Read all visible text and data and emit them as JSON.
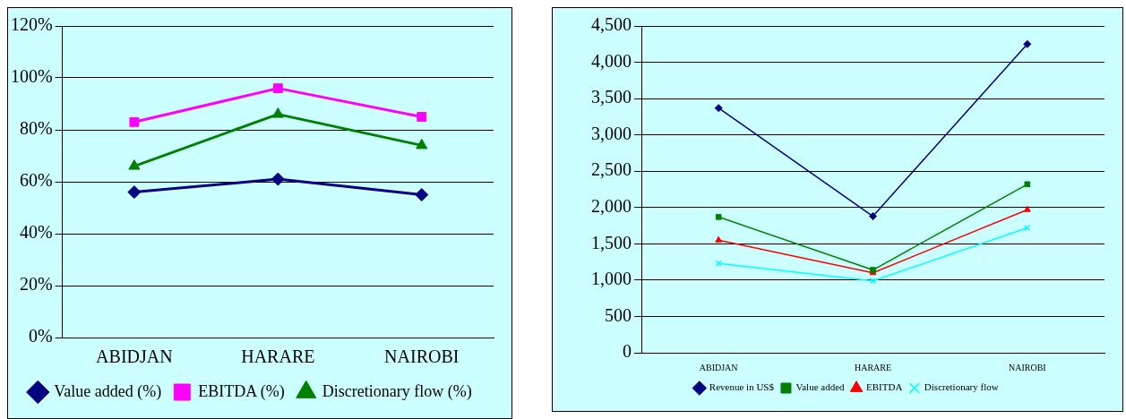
{
  "chart_data": [
    {
      "type": "line",
      "categories": [
        "ABIDJAN",
        "HARARE",
        "NAIROBI"
      ],
      "ylim": [
        0,
        120
      ],
      "yticks": [
        {
          "value": 0,
          "label": "0%"
        },
        {
          "value": 20,
          "label": "20%"
        },
        {
          "value": 40,
          "label": "40%"
        },
        {
          "value": 60,
          "label": "60%"
        },
        {
          "value": 80,
          "label": "80%"
        },
        {
          "value": 100,
          "label": "100%"
        },
        {
          "value": 120,
          "label": "120%"
        }
      ],
      "grid": "y",
      "legend": "bottom",
      "series": [
        {
          "name": "Value added (%)",
          "color": "#000080",
          "marker": "diamond",
          "values": [
            56,
            61,
            55
          ]
        },
        {
          "name": "EBITDA (%)",
          "color": "#ff00ff",
          "marker": "square",
          "values": [
            83,
            96,
            85
          ]
        },
        {
          "name": "Discretionary flow (%)",
          "color": "#008000",
          "marker": "triangle",
          "values": [
            66,
            86,
            74
          ]
        }
      ]
    },
    {
      "type": "line",
      "categories": [
        "ABIDJAN",
        "HARARE",
        "NAIROBI"
      ],
      "ylim": [
        0,
        4500
      ],
      "yticks": [
        {
          "value": 0,
          "label": "0"
        },
        {
          "value": 500,
          "label": "500"
        },
        {
          "value": 1000,
          "label": "1,000"
        },
        {
          "value": 1500,
          "label": "1,500"
        },
        {
          "value": 2000,
          "label": "2,000"
        },
        {
          "value": 2500,
          "label": "2,500"
        },
        {
          "value": 3000,
          "label": "3,000"
        },
        {
          "value": 3500,
          "label": "3,500"
        },
        {
          "value": 4000,
          "label": "4,000"
        },
        {
          "value": 4500,
          "label": "4,500"
        }
      ],
      "grid": "y",
      "legend": "bottom",
      "series": [
        {
          "name": "Revenue in US$",
          "color": "#000080",
          "marker": "diamond",
          "values": [
            3370,
            1880,
            4250
          ]
        },
        {
          "name": "Value added",
          "color": "#008000",
          "marker": "square",
          "values": [
            1870,
            1140,
            2320
          ]
        },
        {
          "name": "EBITDA",
          "color": "#ff0000",
          "marker": "triangle",
          "values": [
            1550,
            1100,
            1970
          ]
        },
        {
          "name": "Discretionary flow",
          "color": "#00ffff",
          "marker": "cross",
          "values": [
            1230,
            990,
            1720
          ]
        }
      ]
    }
  ]
}
